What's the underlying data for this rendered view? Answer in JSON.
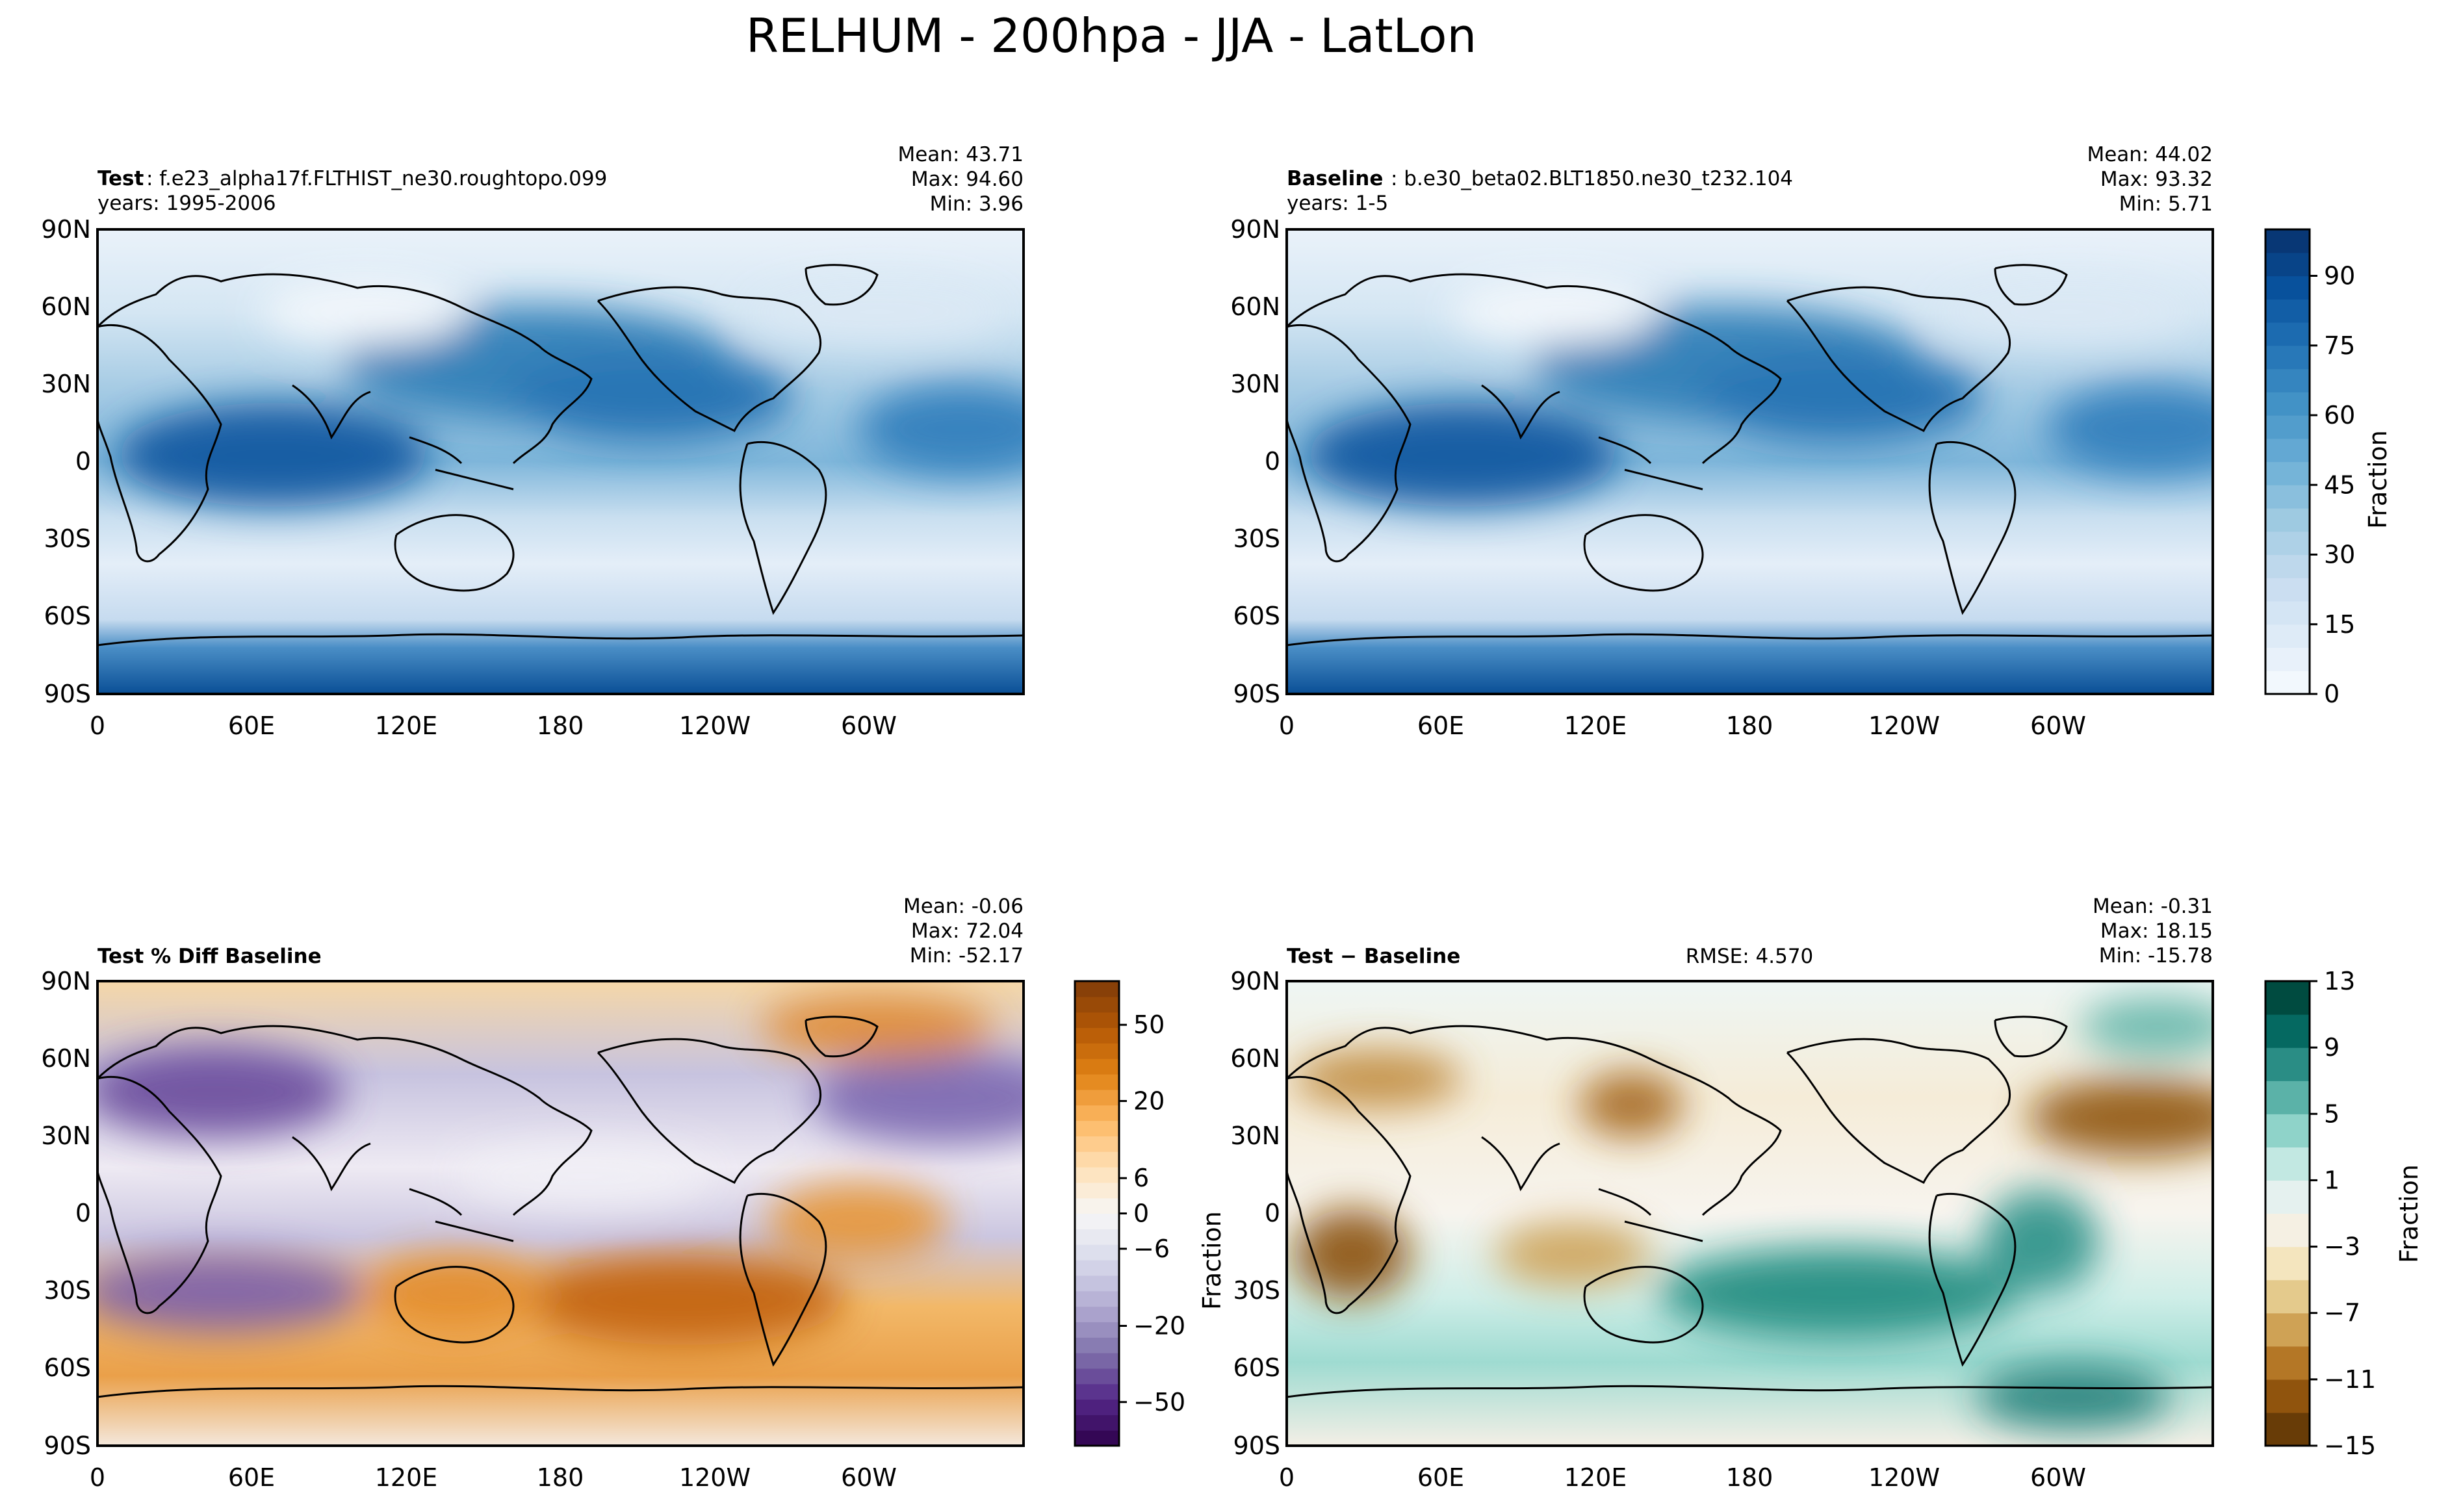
{
  "figure_title": "RELHUM - 200hpa - JJA - LatLon",
  "lon_ticks": [
    "0",
    "60E",
    "120E",
    "180",
    "120W",
    "60W"
  ],
  "lat_ticks": [
    "90N",
    "60N",
    "30N",
    "0",
    "30S",
    "60S",
    "90S"
  ],
  "colors": {
    "blues": [
      "#f7fbff",
      "#deebf7",
      "#c6dbef",
      "#9ecae1",
      "#6baed6",
      "#4292c6",
      "#2171b5",
      "#08519c",
      "#08306b"
    ],
    "puor": [
      "#2d004b",
      "#542788",
      "#8073ac",
      "#b2abd2",
      "#d8daeb",
      "#f7f7f7",
      "#fee0b6",
      "#fdb863",
      "#e08214",
      "#b35806",
      "#7f3b08"
    ],
    "brbg": [
      "#543005",
      "#8c510a",
      "#bf812d",
      "#dfc27d",
      "#f6e8c3",
      "#f5f5f5",
      "#c7eae5",
      "#80cdc1",
      "#35978f",
      "#01665e",
      "#003c30"
    ]
  },
  "chart_data": [
    {
      "type": "heatmap",
      "panel": "test",
      "label_bold": "Test",
      "label_text": ": f.e23_alpha17f.FLTHIST_ne30.roughtopo.099",
      "years": "years: 1995-2006",
      "stats": {
        "mean": "Mean: 43.71",
        "max": "Max: 94.60",
        "min": "Min:  3.96"
      },
      "x_range": [
        0,
        360
      ],
      "y_range": [
        -90,
        90
      ],
      "field": "relative humidity at 200 hPa, June-July-August mean"
    },
    {
      "type": "heatmap",
      "panel": "baseline",
      "label_bold": "Baseline",
      "label_text": ": b.e30_beta02.BLT1850.ne30_t232.104",
      "years": "years: 1-5",
      "stats": {
        "mean": "Mean: 44.02",
        "max": "Max: 93.32",
        "min": "Min:  5.71"
      },
      "x_range": [
        0,
        360
      ],
      "y_range": [
        -90,
        90
      ],
      "colorbar": {
        "label": "Fraction",
        "range": [
          0,
          100
        ],
        "tick_values": [
          0,
          15,
          30,
          45,
          60,
          75,
          90
        ],
        "tick_labels": [
          "0",
          "15",
          "30",
          "45",
          "60",
          "75",
          "90"
        ]
      }
    },
    {
      "type": "heatmap",
      "panel": "percent_diff",
      "label_bold": "Test % Diff Baseline",
      "stats": {
        "mean": "Mean: -0.06",
        "max": "Max: 72.04",
        "min": "Min: -52.17"
      },
      "x_range": [
        0,
        360
      ],
      "y_range": [
        -90,
        90
      ],
      "colorbar": {
        "tick_labels": [
          "−50",
          "−20",
          "−6",
          "0",
          "6",
          "20",
          "50"
        ],
        "n_levels": 30
      }
    },
    {
      "type": "heatmap",
      "panel": "difference",
      "label_bold": "Test − Baseline",
      "rmse": "RMSE: 4.570",
      "ylabel": "Fraction",
      "stats": {
        "mean": "Mean: -0.31",
        "max": "Max: 18.15",
        "min": "Min: -15.78"
      },
      "x_range": [
        0,
        360
      ],
      "y_range": [
        -90,
        90
      ],
      "colorbar": {
        "label": "Fraction",
        "range": [
          -15,
          13
        ],
        "tick_values": [
          -15,
          -11,
          -7,
          -3,
          1,
          5,
          9,
          13
        ],
        "tick_labels": [
          "−15",
          "−11",
          "−7",
          "−3",
          "1",
          "5",
          "9",
          "13"
        ]
      }
    }
  ]
}
